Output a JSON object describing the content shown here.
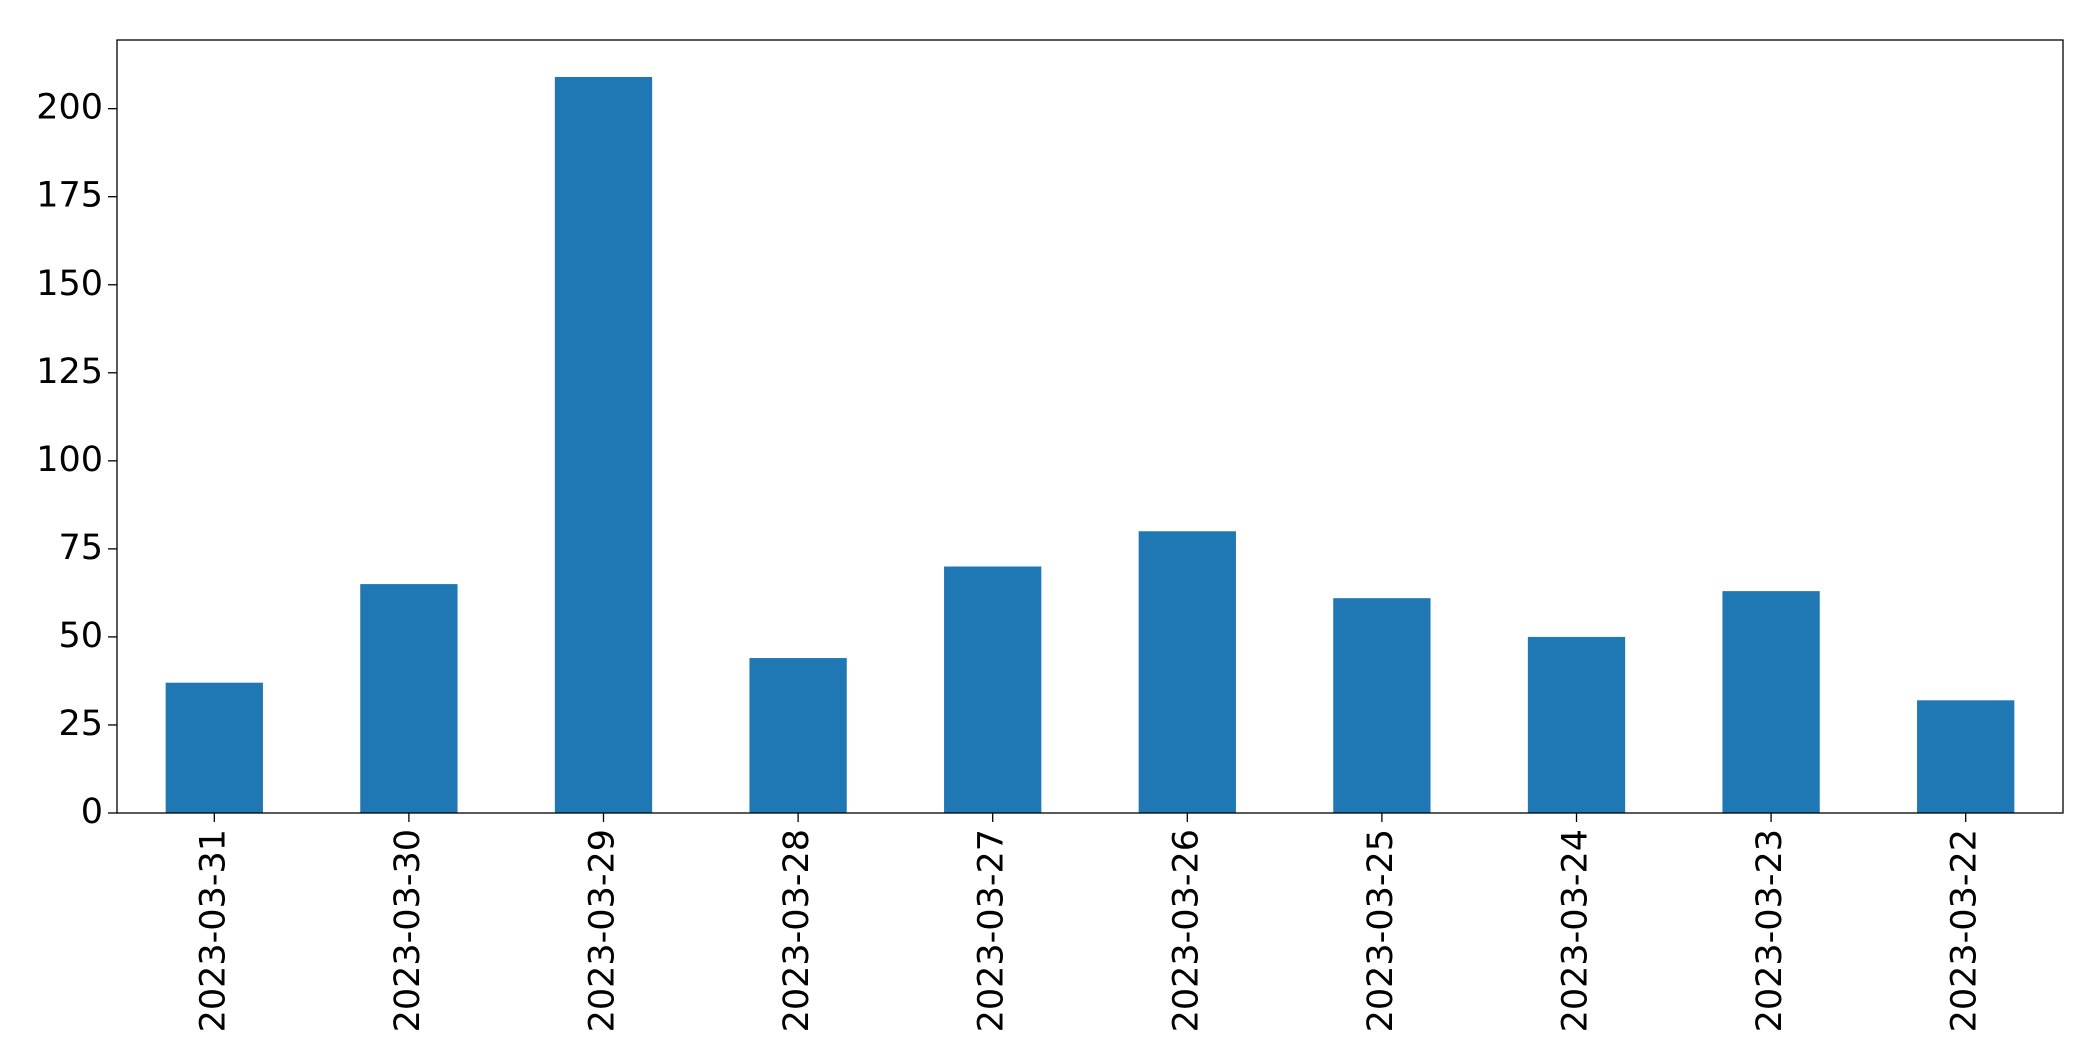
{
  "chart_data": {
    "type": "bar",
    "categories": [
      "2023-03-31",
      "2023-03-30",
      "2023-03-29",
      "2023-03-28",
      "2023-03-27",
      "2023-03-26",
      "2023-03-25",
      "2023-03-24",
      "2023-03-23",
      "2023-03-22"
    ],
    "values": [
      37,
      65,
      209,
      44,
      70,
      80,
      61,
      50,
      63,
      32
    ],
    "color": "#1f77b4",
    "ylim": [
      0,
      219.5
    ],
    "yticks": [
      0,
      25,
      50,
      75,
      100,
      125,
      150,
      175,
      200
    ],
    "grid": false
  }
}
